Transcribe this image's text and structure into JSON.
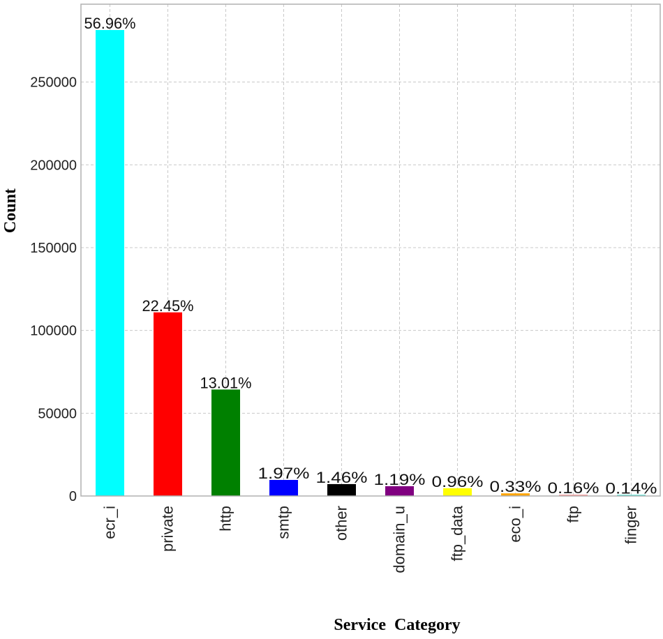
{
  "chart_data": {
    "type": "bar",
    "title": "",
    "xlabel": "Service  Category",
    "ylabel": "Count",
    "categories": [
      "ecr_i",
      "private",
      "http",
      "smtp",
      "other",
      "domain_u",
      "ftp_data",
      "eco_i",
      "ftp",
      "finger"
    ],
    "values": [
      281400,
      110900,
      64300,
      9700,
      7200,
      5900,
      4700,
      1600,
      800,
      700
    ],
    "data_labels": [
      "56.96%",
      "22.45%",
      "13.01%",
      "1.97%",
      "1.46%",
      "1.19%",
      "0.96%",
      "0.33%",
      "0.16%",
      "0.14%"
    ],
    "colors": [
      "#00ffff",
      "#ff0000",
      "#008000",
      "#0000ff",
      "#000000",
      "#800080",
      "#ffff00",
      "#ffa500",
      "#ff9999",
      "#40e0d0"
    ],
    "yticks": [
      0,
      50000,
      100000,
      150000,
      200000,
      250000
    ],
    "ylim": [
      0,
      297000
    ],
    "grid": true,
    "legend": "none"
  }
}
